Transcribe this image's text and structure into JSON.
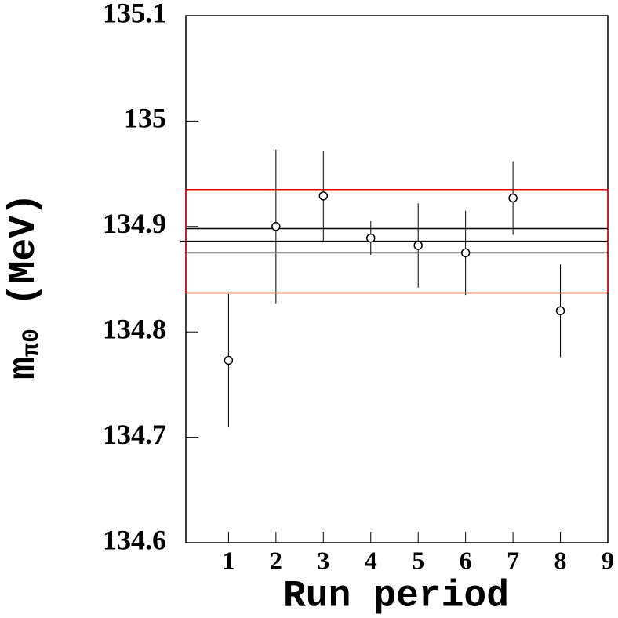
{
  "chart_data": {
    "type": "scatter",
    "x_label": "Run period",
    "y_label": "m",
    "y_label_sub": "π0",
    "y_label_unit": "(MeV)",
    "series": [
      {
        "x": [
          1,
          2,
          3,
          4,
          5,
          6,
          7,
          8
        ],
        "values": [
          134.773,
          134.9,
          134.929,
          134.889,
          134.882,
          134.875,
          134.927,
          134.82
        ],
        "errors": [
          0.063,
          0.073,
          0.043,
          0.016,
          0.04,
          0.04,
          0.035,
          0.044
        ],
        "color": "#000000"
      }
    ],
    "reference_lines": [
      134.898,
      134.886,
      134.875
    ],
    "reference_color": "#000000",
    "band": [
      134.837,
      134.935
    ],
    "band_color": "#e00000",
    "xlim": [
      0.1,
      9
    ],
    "xticks": [
      1,
      2,
      3,
      4,
      5,
      6,
      7,
      8,
      9
    ],
    "ylim": [
      134.6,
      135.1
    ],
    "yticks": [
      134.6,
      134.7,
      134.8,
      134.9,
      135,
      135.1
    ]
  }
}
